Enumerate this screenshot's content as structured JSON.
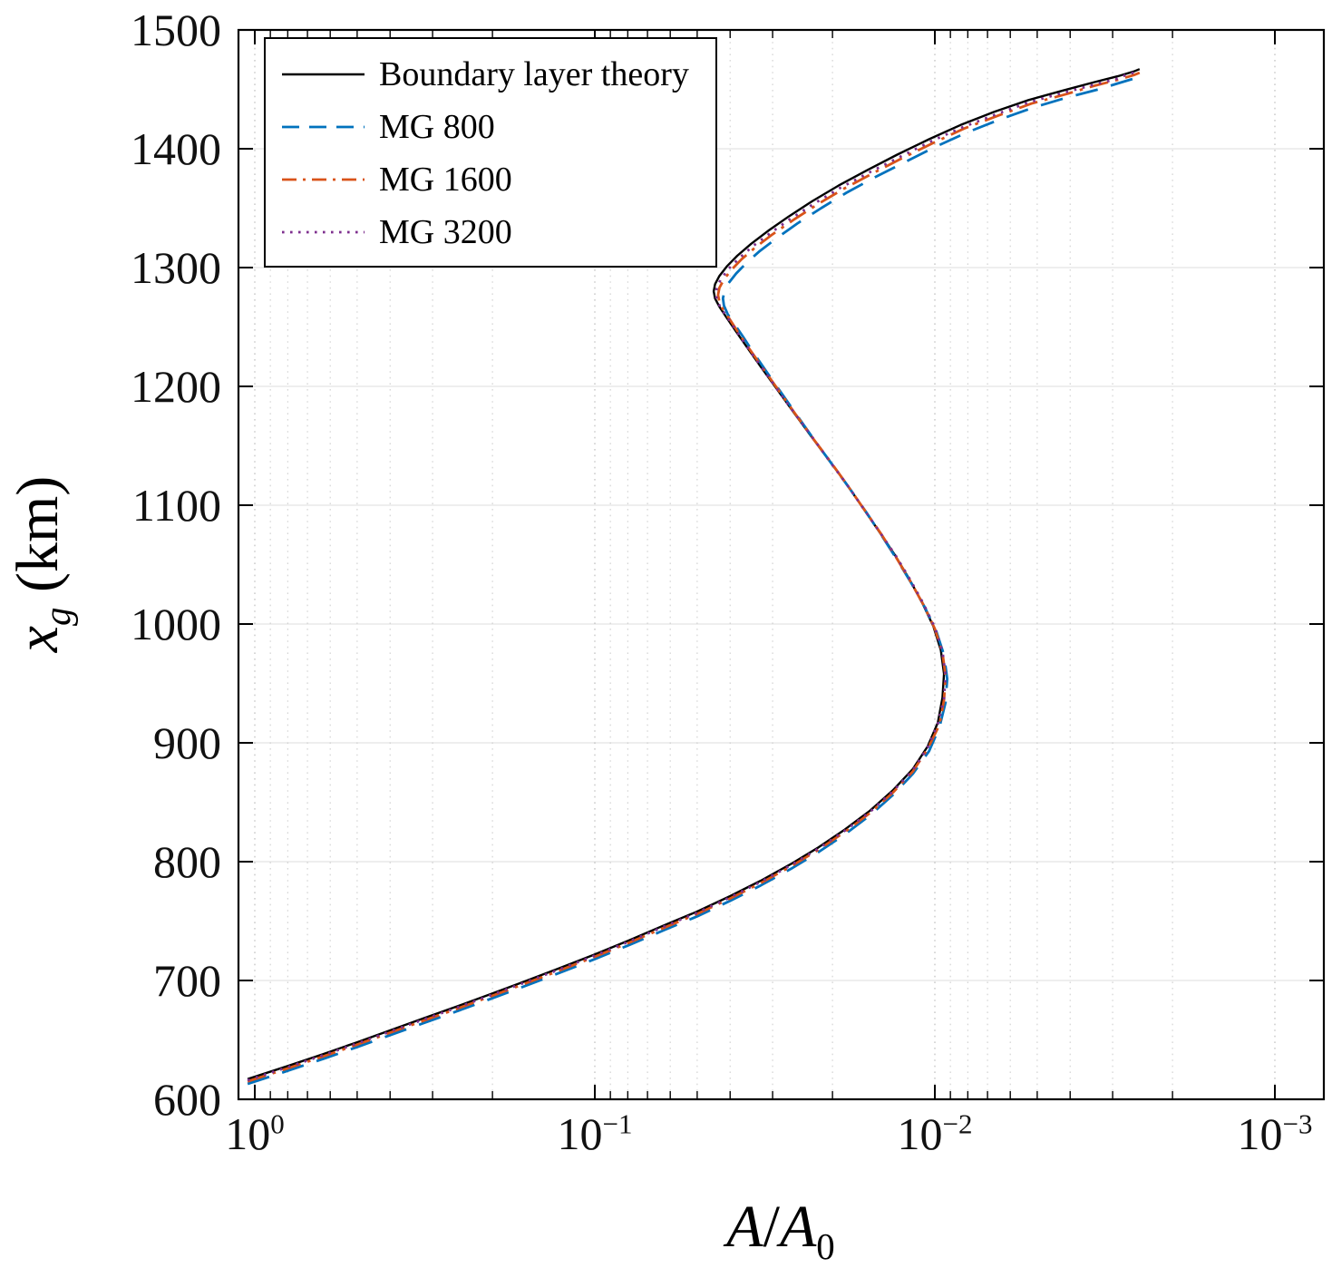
{
  "chart_data": {
    "type": "line",
    "title": "",
    "xlabel": "A/A0",
    "xlabel_parts": {
      "var1": "A",
      "sep": "/",
      "var2": "A",
      "sub": "0"
    },
    "ylabel": "xg (km)",
    "ylabel_parts": {
      "var": "x",
      "sub": "g",
      "rest": " (km)"
    },
    "x_axis": {
      "scale": "log",
      "reversed": true,
      "limits": [
        1.12,
        0.00072
      ],
      "tick_values": [
        1,
        0.1,
        0.01,
        0.001
      ],
      "tick_base": "10",
      "tick_exponents": [
        "0",
        "−1",
        "−2",
        "−3"
      ],
      "minor_grid": true,
      "grid": true
    },
    "y_axis": {
      "limits": [
        600,
        1500
      ],
      "tick_values": [
        600,
        700,
        800,
        900,
        1000,
        1100,
        1200,
        1300,
        1400,
        1500
      ],
      "tick_labels_top_down": [
        "1500",
        "1400",
        "1300",
        "1200",
        "1100",
        "1000",
        "900",
        "800",
        "700",
        "600"
      ],
      "grid": true
    },
    "legend_position": "northwest",
    "points_format": "[A_over_A0, xg_km]",
    "series": [
      {
        "name": "Boundary layer theory",
        "color": "#000000",
        "line_style": "solid",
        "points": [
          [
            1.05,
            617
          ],
          [
            0.8,
            628
          ],
          [
            0.63,
            638
          ],
          [
            0.5,
            648
          ],
          [
            0.4,
            658
          ],
          [
            0.32,
            668
          ],
          [
            0.255,
            678
          ],
          [
            0.205,
            688
          ],
          [
            0.165,
            698
          ],
          [
            0.128,
            710
          ],
          [
            0.1,
            722
          ],
          [
            0.079,
            734
          ],
          [
            0.063,
            746
          ],
          [
            0.05,
            758
          ],
          [
            0.04,
            771
          ],
          [
            0.0325,
            784
          ],
          [
            0.0265,
            798
          ],
          [
            0.022,
            812
          ],
          [
            0.0184,
            827
          ],
          [
            0.0155,
            843
          ],
          [
            0.0133,
            860
          ],
          [
            0.0116,
            878
          ],
          [
            0.0105,
            897
          ],
          [
            0.0098,
            917
          ],
          [
            0.0095,
            938
          ],
          [
            0.0094,
            958
          ],
          [
            0.0096,
            978
          ],
          [
            0.0101,
            998
          ],
          [
            0.0109,
            1018
          ],
          [
            0.0119,
            1038
          ],
          [
            0.0131,
            1058
          ],
          [
            0.0146,
            1078
          ],
          [
            0.0163,
            1098
          ],
          [
            0.0182,
            1118
          ],
          [
            0.0205,
            1138
          ],
          [
            0.0231,
            1158
          ],
          [
            0.026,
            1178
          ],
          [
            0.0292,
            1198
          ],
          [
            0.0324,
            1216
          ],
          [
            0.0355,
            1232
          ],
          [
            0.0384,
            1246
          ],
          [
            0.041,
            1258
          ],
          [
            0.043,
            1267
          ],
          [
            0.0443,
            1274
          ],
          [
            0.0447,
            1280
          ],
          [
            0.0443,
            1286
          ],
          [
            0.043,
            1293
          ],
          [
            0.0409,
            1301
          ],
          [
            0.0381,
            1310
          ],
          [
            0.0347,
            1320
          ],
          [
            0.0309,
            1331
          ],
          [
            0.0269,
            1343
          ],
          [
            0.0229,
            1356
          ],
          [
            0.0192,
            1369
          ],
          [
            0.0158,
            1382
          ],
          [
            0.0129,
            1395
          ],
          [
            0.0104,
            1408
          ],
          [
            0.0084,
            1420
          ],
          [
            0.0067,
            1431
          ],
          [
            0.0053,
            1441
          ],
          [
            0.0042,
            1449
          ],
          [
            0.0034,
            1456
          ],
          [
            0.0029,
            1461
          ],
          [
            0.0026,
            1465
          ],
          [
            0.0025,
            1467
          ]
        ]
      },
      {
        "name": "MG 800",
        "color": "#0072BD",
        "line_style": "dashed",
        "points": [
          [
            1.05,
            613
          ],
          [
            0.8,
            624
          ],
          [
            0.63,
            634
          ],
          [
            0.5,
            644
          ],
          [
            0.4,
            654
          ],
          [
            0.32,
            664
          ],
          [
            0.255,
            674
          ],
          [
            0.205,
            684
          ],
          [
            0.165,
            694
          ],
          [
            0.128,
            706
          ],
          [
            0.1,
            718
          ],
          [
            0.079,
            730
          ],
          [
            0.063,
            742
          ],
          [
            0.05,
            754
          ],
          [
            0.04,
            767
          ],
          [
            0.0325,
            780
          ],
          [
            0.0265,
            794
          ],
          [
            0.022,
            808
          ],
          [
            0.0184,
            823
          ],
          [
            0.0155,
            839
          ],
          [
            0.0133,
            856
          ],
          [
            0.0116,
            874
          ],
          [
            0.0104,
            893
          ],
          [
            0.0097,
            913
          ],
          [
            0.0093,
            934
          ],
          [
            0.0092,
            954
          ],
          [
            0.0094,
            974
          ],
          [
            0.0099,
            994
          ],
          [
            0.0107,
            1014
          ],
          [
            0.0117,
            1034
          ],
          [
            0.0129,
            1054
          ],
          [
            0.0143,
            1074
          ],
          [
            0.0159,
            1094
          ],
          [
            0.0178,
            1114
          ],
          [
            0.02,
            1134
          ],
          [
            0.0225,
            1154
          ],
          [
            0.0252,
            1174
          ],
          [
            0.0282,
            1194
          ],
          [
            0.0312,
            1212
          ],
          [
            0.0341,
            1228
          ],
          [
            0.0367,
            1242
          ],
          [
            0.039,
            1253
          ],
          [
            0.0407,
            1261
          ],
          [
            0.0417,
            1268
          ],
          [
            0.042,
            1274
          ],
          [
            0.0416,
            1280
          ],
          [
            0.0404,
            1287
          ],
          [
            0.0384,
            1295
          ],
          [
            0.0358,
            1304
          ],
          [
            0.0327,
            1314
          ],
          [
            0.0291,
            1325
          ],
          [
            0.0254,
            1337
          ],
          [
            0.0216,
            1350
          ],
          [
            0.0182,
            1363
          ],
          [
            0.015,
            1376
          ],
          [
            0.0122,
            1389
          ],
          [
            0.0099,
            1402
          ],
          [
            0.008,
            1414
          ],
          [
            0.0064,
            1425
          ],
          [
            0.0051,
            1435
          ],
          [
            0.0041,
            1443
          ],
          [
            0.0033,
            1450
          ],
          [
            0.0029,
            1455
          ],
          [
            0.0026,
            1459
          ],
          [
            0.0025,
            1461
          ]
        ]
      },
      {
        "name": "MG 1600",
        "color": "#D95319",
        "line_style": "dashdot",
        "points": [
          [
            1.05,
            615
          ],
          [
            0.8,
            626
          ],
          [
            0.63,
            636
          ],
          [
            0.5,
            646
          ],
          [
            0.4,
            656
          ],
          [
            0.32,
            666
          ],
          [
            0.255,
            676
          ],
          [
            0.205,
            686
          ],
          [
            0.165,
            696
          ],
          [
            0.128,
            708
          ],
          [
            0.1,
            720
          ],
          [
            0.079,
            732
          ],
          [
            0.063,
            744
          ],
          [
            0.05,
            756
          ],
          [
            0.04,
            769
          ],
          [
            0.0325,
            782
          ],
          [
            0.0265,
            796
          ],
          [
            0.022,
            810
          ],
          [
            0.0184,
            825
          ],
          [
            0.0155,
            841
          ],
          [
            0.0133,
            858
          ],
          [
            0.0116,
            876
          ],
          [
            0.0105,
            895
          ],
          [
            0.0097,
            915
          ],
          [
            0.0094,
            936
          ],
          [
            0.0093,
            956
          ],
          [
            0.0095,
            976
          ],
          [
            0.01,
            996
          ],
          [
            0.0108,
            1016
          ],
          [
            0.0118,
            1036
          ],
          [
            0.013,
            1056
          ],
          [
            0.0144,
            1076
          ],
          [
            0.0161,
            1096
          ],
          [
            0.018,
            1116
          ],
          [
            0.0202,
            1136
          ],
          [
            0.0228,
            1156
          ],
          [
            0.0256,
            1176
          ],
          [
            0.0287,
            1196
          ],
          [
            0.0318,
            1214
          ],
          [
            0.0348,
            1230
          ],
          [
            0.0376,
            1244
          ],
          [
            0.04,
            1256
          ],
          [
            0.0419,
            1264
          ],
          [
            0.043,
            1271
          ],
          [
            0.0434,
            1277
          ],
          [
            0.043,
            1283
          ],
          [
            0.0417,
            1290
          ],
          [
            0.0397,
            1298
          ],
          [
            0.037,
            1307
          ],
          [
            0.0337,
            1317
          ],
          [
            0.03,
            1328
          ],
          [
            0.0261,
            1340
          ],
          [
            0.0222,
            1353
          ],
          [
            0.0186,
            1366
          ],
          [
            0.0153,
            1379
          ],
          [
            0.0125,
            1392
          ],
          [
            0.0101,
            1405
          ],
          [
            0.0082,
            1417
          ],
          [
            0.0065,
            1428
          ],
          [
            0.0052,
            1438
          ],
          [
            0.0041,
            1446
          ],
          [
            0.0034,
            1453
          ],
          [
            0.0029,
            1458
          ],
          [
            0.0026,
            1462
          ],
          [
            0.0025,
            1464
          ]
        ]
      },
      {
        "name": "MG 3200",
        "color": "#7E2F8E",
        "line_style": "dotted",
        "points": [
          [
            1.05,
            616
          ],
          [
            0.8,
            627
          ],
          [
            0.63,
            637
          ],
          [
            0.5,
            647
          ],
          [
            0.4,
            657
          ],
          [
            0.32,
            667
          ],
          [
            0.255,
            677
          ],
          [
            0.205,
            687
          ],
          [
            0.165,
            697
          ],
          [
            0.128,
            709
          ],
          [
            0.1,
            721
          ],
          [
            0.079,
            733
          ],
          [
            0.063,
            745
          ],
          [
            0.05,
            757
          ],
          [
            0.04,
            770
          ],
          [
            0.0325,
            783
          ],
          [
            0.0265,
            797
          ],
          [
            0.022,
            811
          ],
          [
            0.0184,
            826
          ],
          [
            0.0155,
            842
          ],
          [
            0.0133,
            859
          ],
          [
            0.0116,
            877
          ],
          [
            0.0105,
            896
          ],
          [
            0.0098,
            916
          ],
          [
            0.0094,
            937
          ],
          [
            0.0093,
            957
          ],
          [
            0.0095,
            977
          ],
          [
            0.01,
            997
          ],
          [
            0.0108,
            1017
          ],
          [
            0.0118,
            1037
          ],
          [
            0.013,
            1057
          ],
          [
            0.0145,
            1077
          ],
          [
            0.0162,
            1097
          ],
          [
            0.0181,
            1117
          ],
          [
            0.0204,
            1137
          ],
          [
            0.0229,
            1157
          ],
          [
            0.0258,
            1177
          ],
          [
            0.029,
            1197
          ],
          [
            0.0321,
            1215
          ],
          [
            0.0352,
            1231
          ],
          [
            0.038,
            1245
          ],
          [
            0.0405,
            1257
          ],
          [
            0.0424,
            1265
          ],
          [
            0.0437,
            1272
          ],
          [
            0.0441,
            1278
          ],
          [
            0.0437,
            1284
          ],
          [
            0.0424,
            1291
          ],
          [
            0.0404,
            1299
          ],
          [
            0.0376,
            1308
          ],
          [
            0.0343,
            1318
          ],
          [
            0.0305,
            1329
          ],
          [
            0.0266,
            1341
          ],
          [
            0.0226,
            1354
          ],
          [
            0.019,
            1367
          ],
          [
            0.0156,
            1380
          ],
          [
            0.0127,
            1393
          ],
          [
            0.0103,
            1406
          ],
          [
            0.0083,
            1418
          ],
          [
            0.0066,
            1429
          ],
          [
            0.0053,
            1439
          ],
          [
            0.0042,
            1447
          ],
          [
            0.0034,
            1454
          ],
          [
            0.0029,
            1459
          ],
          [
            0.0027,
            1463
          ],
          [
            0.0025,
            1465
          ]
        ]
      }
    ]
  }
}
